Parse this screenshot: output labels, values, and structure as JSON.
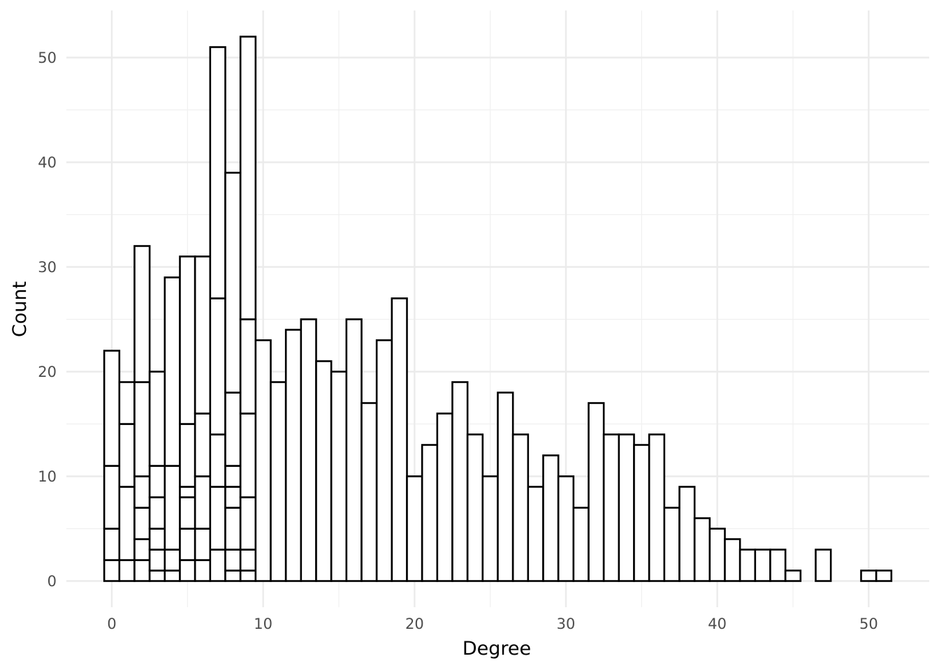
{
  "chart_data": {
    "type": "bar",
    "title": "",
    "xlabel": "Degree",
    "ylabel": "Count",
    "xlim": [
      -3,
      54
    ],
    "ylim": [
      -2.5,
      54.5
    ],
    "x_ticks": [
      0,
      10,
      20,
      30,
      40,
      50
    ],
    "y_ticks": [
      0,
      10,
      20,
      30,
      40,
      50
    ],
    "grid": true,
    "legend": "none",
    "stacked": true,
    "bar_width": 1,
    "fill": "#ffffff",
    "outline": "#000000",
    "x": [
      0,
      1,
      2,
      3,
      4,
      5,
      6,
      7,
      8,
      9,
      10,
      11,
      12,
      13,
      14,
      15,
      16,
      17,
      18,
      19,
      20,
      21,
      22,
      23,
      24,
      25,
      26,
      27,
      28,
      29,
      30,
      31,
      32,
      33,
      34,
      35,
      36,
      37,
      38,
      39,
      40,
      41,
      42,
      43,
      44,
      45,
      46,
      47,
      48,
      49,
      50,
      51
    ],
    "totals": [
      22,
      19,
      32,
      20,
      29,
      31,
      31,
      51,
      39,
      52,
      23,
      19,
      24,
      25,
      21,
      20,
      25,
      17,
      23,
      27,
      10,
      13,
      16,
      19,
      14,
      10,
      18,
      14,
      9,
      12,
      10,
      7,
      17,
      14,
      14,
      13,
      14,
      7,
      9,
      6,
      5,
      4,
      3,
      3,
      3,
      1,
      0,
      3,
      0,
      0,
      1,
      1
    ],
    "stack_boundaries": [
      [
        2,
        5,
        11
      ],
      [
        2,
        9,
        15
      ],
      [
        2,
        4,
        7,
        10,
        19
      ],
      [
        1,
        3,
        5,
        8,
        11
      ],
      [
        1,
        3,
        11
      ],
      [
        2,
        5,
        8,
        9,
        15
      ],
      [
        2,
        5,
        10,
        16
      ],
      [
        3,
        9,
        14,
        27
      ],
      [
        1,
        3,
        7,
        9,
        11,
        18
      ],
      [
        1,
        3,
        8,
        16,
        25
      ],
      [],
      [],
      [],
      [],
      [],
      [],
      [],
      [],
      [],
      [],
      [],
      [],
      [],
      [],
      [],
      [],
      [],
      [],
      [],
      [],
      [],
      [],
      [],
      [],
      [],
      [],
      [],
      [],
      [],
      [],
      [],
      [],
      [],
      [],
      [],
      [],
      [],
      [],
      [],
      [],
      [],
      []
    ]
  }
}
